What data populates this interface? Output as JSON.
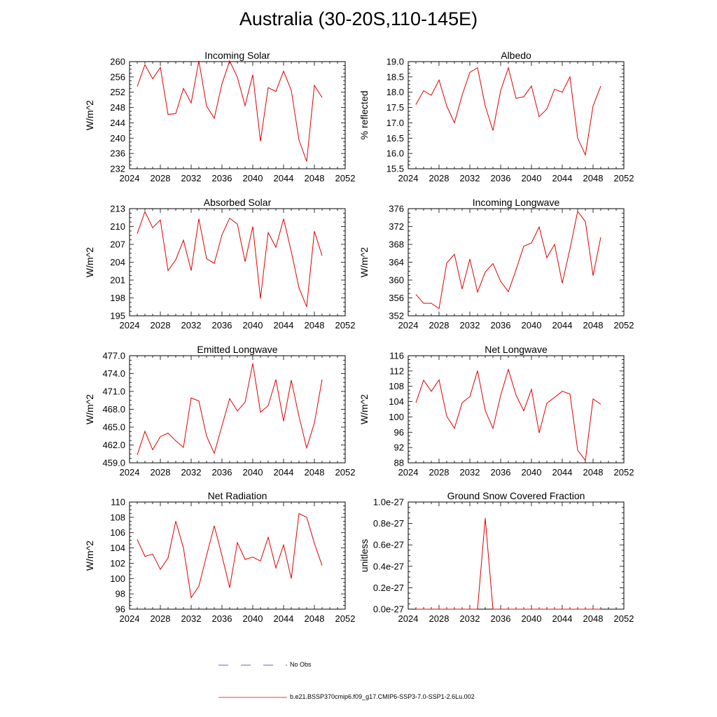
{
  "page_title": "Australia (30-20S,110-145E)",
  "legend": [
    {
      "label": "No Obs",
      "color": "#3030a0",
      "dash": "dashed"
    },
    {
      "label": "b.e21.BSSP370cmip6.f09_g17.CMIP6-SSP3-7.0-SSP1-2.6Lu.002",
      "color": "#e00000",
      "dash": "solid"
    }
  ],
  "line_color": "#e00000",
  "chart_data": [
    {
      "type": "line",
      "title": "Incoming Solar",
      "ylabel": "W/m^2",
      "xlim": [
        2024,
        2052
      ],
      "ylim": [
        232,
        260
      ],
      "x_ticks": [
        "2024",
        "2028",
        "2032",
        "2036",
        "2040",
        "2044",
        "2048",
        "2052"
      ],
      "y_ticks": [
        "232",
        "236",
        "240",
        "244",
        "248",
        "252",
        "256",
        "260"
      ],
      "grid": false,
      "series": [
        {
          "x": [
            2025,
            2026,
            2027,
            2028,
            2029,
            2030,
            2031,
            2032,
            2033,
            2034,
            2035,
            2036,
            2037,
            2038,
            2039,
            2040,
            2041,
            2042,
            2043,
            2044,
            2045,
            2046,
            2047,
            2048,
            2049
          ],
          "values": [
            253.5,
            259.2,
            255.5,
            258.5,
            246.2,
            246.4,
            253.0,
            249.2,
            260.2,
            248.4,
            245.2,
            254.2,
            260.2,
            255.9,
            248.5,
            256.6,
            239.2,
            253.2,
            252.2,
            257.5,
            252.5,
            239.5,
            233.9,
            253.8,
            250.6
          ]
        }
      ]
    },
    {
      "type": "line",
      "title": "Albedo",
      "ylabel": "% reflected",
      "xlim": [
        2024,
        2052
      ],
      "ylim": [
        15.5,
        19.0
      ],
      "x_ticks": [
        "2024",
        "2028",
        "2032",
        "2036",
        "2040",
        "2044",
        "2048",
        "2052"
      ],
      "y_ticks": [
        "15.5",
        "16.0",
        "16.5",
        "17.0",
        "17.5",
        "18.0",
        "18.5",
        "19.0"
      ],
      "grid": false,
      "series": [
        {
          "x": [
            2025,
            2026,
            2027,
            2028,
            2029,
            2030,
            2031,
            2032,
            2033,
            2034,
            2035,
            2036,
            2037,
            2038,
            2039,
            2040,
            2041,
            2042,
            2043,
            2044,
            2045,
            2046,
            2047,
            2048,
            2049
          ],
          "values": [
            17.6,
            18.05,
            17.9,
            18.4,
            17.55,
            17.0,
            17.9,
            18.65,
            18.8,
            17.55,
            16.75,
            18.05,
            18.8,
            17.8,
            17.85,
            18.2,
            17.2,
            17.45,
            18.1,
            18.0,
            18.5,
            16.5,
            15.95,
            17.55,
            18.2
          ]
        }
      ]
    },
    {
      "type": "line",
      "title": "Absorbed Solar",
      "ylabel": "W/m^2",
      "xlim": [
        2024,
        2052
      ],
      "ylim": [
        195,
        213
      ],
      "x_ticks": [
        "2024",
        "2028",
        "2032",
        "2036",
        "2040",
        "2044",
        "2048",
        "2052"
      ],
      "y_ticks": [
        "195",
        "198",
        "201",
        "204",
        "207",
        "210",
        "213"
      ],
      "grid": false,
      "series": [
        {
          "x": [
            2025,
            2026,
            2027,
            2028,
            2029,
            2030,
            2031,
            2032,
            2033,
            2034,
            2035,
            2036,
            2037,
            2038,
            2039,
            2040,
            2041,
            2042,
            2043,
            2044,
            2045,
            2046,
            2047,
            2048,
            2049
          ],
          "values": [
            208.8,
            212.5,
            209.8,
            211.1,
            202.6,
            204.4,
            207.7,
            202.6,
            211.3,
            204.6,
            203.8,
            208.6,
            211.4,
            210.4,
            204.1,
            210.0,
            197.9,
            209.0,
            206.5,
            211.3,
            205.8,
            199.7,
            196.5,
            209.2,
            205.1
          ]
        }
      ]
    },
    {
      "type": "line",
      "title": "Incoming Longwave",
      "ylabel": "W/m^2",
      "xlim": [
        2024,
        2052
      ],
      "ylim": [
        352,
        376
      ],
      "x_ticks": [
        "2024",
        "2028",
        "2032",
        "2036",
        "2040",
        "2044",
        "2048",
        "2052"
      ],
      "y_ticks": [
        "352",
        "356",
        "360",
        "364",
        "368",
        "372",
        "376"
      ],
      "grid": false,
      "series": [
        {
          "x": [
            2025,
            2026,
            2027,
            2028,
            2029,
            2030,
            2031,
            2032,
            2033,
            2034,
            2035,
            2036,
            2037,
            2038,
            2039,
            2040,
            2041,
            2042,
            2043,
            2044,
            2045,
            2046,
            2047,
            2048,
            2049
          ],
          "values": [
            356.8,
            354.8,
            354.8,
            353.6,
            363.8,
            365.8,
            358.0,
            364.7,
            357.3,
            361.8,
            363.7,
            359.7,
            357.4,
            362.3,
            367.6,
            368.3,
            371.9,
            365.0,
            368.0,
            359.3,
            367.0,
            375.4,
            373.1,
            361.0,
            369.6
          ]
        }
      ]
    },
    {
      "type": "line",
      "title": "Emitted Longwave",
      "ylabel": "W/m^2",
      "xlim": [
        2024,
        2052
      ],
      "ylim": [
        459.0,
        477.0
      ],
      "x_ticks": [
        "2024",
        "2028",
        "2032",
        "2036",
        "2040",
        "2044",
        "2048",
        "2052"
      ],
      "y_ticks": [
        "459.0",
        "462.0",
        "465.0",
        "468.0",
        "471.0",
        "474.0",
        "477.0"
      ],
      "grid": false,
      "series": [
        {
          "x": [
            2025,
            2026,
            2027,
            2028,
            2029,
            2030,
            2031,
            2032,
            2033,
            2034,
            2035,
            2036,
            2037,
            2038,
            2039,
            2040,
            2041,
            2042,
            2043,
            2044,
            2045,
            2046,
            2047,
            2048,
            2049
          ],
          "values": [
            460.3,
            464.3,
            461.2,
            463.4,
            464.0,
            462.7,
            461.6,
            469.9,
            469.4,
            463.5,
            460.6,
            465.2,
            469.8,
            467.7,
            469.2,
            475.7,
            467.5,
            468.6,
            473.0,
            466.0,
            472.9,
            466.8,
            461.5,
            465.7,
            473.0
          ]
        }
      ]
    },
    {
      "type": "line",
      "title": "Net Longwave",
      "ylabel": "W/m^2",
      "xlim": [
        2024,
        2052
      ],
      "ylim": [
        88,
        116
      ],
      "x_ticks": [
        "2024",
        "2028",
        "2032",
        "2036",
        "2040",
        "2044",
        "2048",
        "2052"
      ],
      "y_ticks": [
        "88",
        "92",
        "96",
        "100",
        "104",
        "108",
        "112",
        "116"
      ],
      "grid": false,
      "series": [
        {
          "x": [
            2025,
            2026,
            2027,
            2028,
            2029,
            2030,
            2031,
            2032,
            2033,
            2034,
            2035,
            2036,
            2037,
            2038,
            2039,
            2040,
            2041,
            2042,
            2043,
            2044,
            2045,
            2046,
            2047,
            2048,
            2049
          ],
          "values": [
            103.7,
            109.6,
            106.7,
            109.7,
            100.2,
            97.0,
            103.7,
            105.3,
            112.1,
            101.7,
            97.0,
            105.6,
            112.4,
            105.7,
            101.6,
            107.2,
            95.8,
            103.6,
            105.1,
            106.7,
            106.0,
            91.3,
            88.6,
            104.7,
            103.3
          ]
        }
      ]
    },
    {
      "type": "line",
      "title": "Net Radiation",
      "ylabel": "W/m^2",
      "xlim": [
        2024,
        2052
      ],
      "ylim": [
        96,
        110
      ],
      "x_ticks": [
        "2024",
        "2028",
        "2032",
        "2036",
        "2040",
        "2044",
        "2048",
        "2052"
      ],
      "y_ticks": [
        "96",
        "98",
        "100",
        "102",
        "104",
        "106",
        "108",
        "110"
      ],
      "grid": false,
      "series": [
        {
          "x": [
            2025,
            2026,
            2027,
            2028,
            2029,
            2030,
            2031,
            2032,
            2033,
            2034,
            2035,
            2036,
            2037,
            2038,
            2039,
            2040,
            2041,
            2042,
            2043,
            2044,
            2045,
            2046,
            2047,
            2048,
            2049
          ],
          "values": [
            105.1,
            102.9,
            103.2,
            101.2,
            102.7,
            107.5,
            104.0,
            97.5,
            99.0,
            103.0,
            106.9,
            103.0,
            98.8,
            104.7,
            102.5,
            102.8,
            102.3,
            105.4,
            101.4,
            104.4,
            100.0,
            108.5,
            108.0,
            104.6,
            101.7
          ]
        }
      ]
    },
    {
      "type": "line",
      "title": "Ground Snow Covered Fraction",
      "ylabel": "unitless",
      "xlim": [
        2024,
        2052
      ],
      "ylim": [
        0,
        1.0
      ],
      "y_unit_note": "values in units of 1e-27",
      "x_ticks": [
        "2024",
        "2028",
        "2032",
        "2036",
        "2040",
        "2044",
        "2048",
        "2052"
      ],
      "y_ticks": [
        "0.0e-27",
        "0.2e-27",
        "0.4e-27",
        "0.6e-27",
        "0.8e-27",
        "1.0e-27"
      ],
      "grid": false,
      "series": [
        {
          "x": [
            2025,
            2026,
            2027,
            2028,
            2029,
            2030,
            2031,
            2032,
            2033,
            2034,
            2035,
            2036,
            2037,
            2038,
            2039,
            2040,
            2041,
            2042,
            2043,
            2044,
            2045,
            2046,
            2047,
            2048,
            2049
          ],
          "values": [
            0,
            0,
            0,
            0,
            0,
            0,
            0,
            0,
            0,
            0.85,
            0,
            0,
            0,
            0,
            0,
            0,
            0,
            0,
            0,
            0,
            0,
            0,
            0,
            0,
            0
          ]
        }
      ]
    }
  ]
}
